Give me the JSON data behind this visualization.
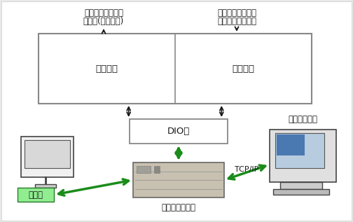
{
  "bg_color": "#e8e8e8",
  "left_label": "控制电路",
  "right_label": "采样电路",
  "dio_label": "DIO卡",
  "top_left_text1": "控制同轴开关和场",
  "top_left_text2": "地开关(受控对象)",
  "top_right_text1": "对同轴开关和场地",
  "top_right_text2": "开关状态进行采样",
  "touch_label": "触摸屏",
  "computer_label": "工业控制计算机",
  "server_label": "机房管理系统",
  "tcpip_label": "TCP/IP",
  "arrow_black": "#1a1a1a",
  "arrow_green": "#1a8c1a",
  "box_edge": "#888888",
  "font_size": 8.5
}
